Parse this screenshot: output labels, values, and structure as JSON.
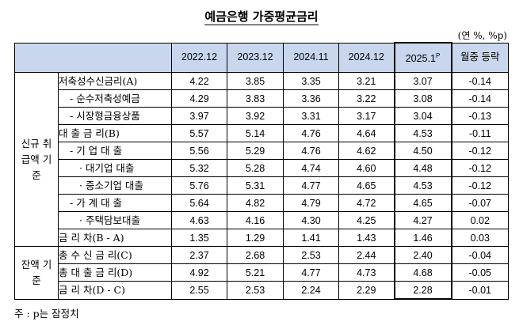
{
  "title": "예금은행 가중평균금리",
  "unit": "(연 %, %p)",
  "columns": [
    "2022.12",
    "2023.12",
    "2024.11",
    "2024.12",
    "2025.1",
    "월중 등락"
  ],
  "prelim_mark": "P",
  "groups": {
    "new": "신규 취급액 기준",
    "balance": "잔액 기준"
  },
  "rows": [
    {
      "label": "저축성수신금리(A)",
      "values": [
        "4.22",
        "3.85",
        "3.35",
        "3.21",
        "3.07",
        "-0.14"
      ]
    },
    {
      "label": "- 순수저축성예금",
      "values": [
        "4.29",
        "3.83",
        "3.36",
        "3.22",
        "3.08",
        "-0.14"
      ]
    },
    {
      "label": "- 시장형금융상품",
      "values": [
        "3.97",
        "3.92",
        "3.31",
        "3.17",
        "3.04",
        "-0.13"
      ]
    },
    {
      "label": "대 출 금 리(B)",
      "values": [
        "5.57",
        "5.14",
        "4.76",
        "4.64",
        "4.53",
        "-0.11"
      ]
    },
    {
      "label": "- 기 업 대 출",
      "values": [
        "5.56",
        "5.29",
        "4.76",
        "4.62",
        "4.50",
        "-0.12"
      ]
    },
    {
      "label": "· 대기업 대출",
      "values": [
        "5.32",
        "5.28",
        "4.74",
        "4.60",
        "4.48",
        "-0.12"
      ]
    },
    {
      "label": "· 중소기업 대출",
      "values": [
        "5.76",
        "5.31",
        "4.77",
        "4.65",
        "4.53",
        "-0.12"
      ]
    },
    {
      "label": "- 가 계 대 출",
      "values": [
        "5.64",
        "4.82",
        "4.79",
        "4.72",
        "4.65",
        "-0.07"
      ]
    },
    {
      "label": "· 주택담보대출",
      "values": [
        "4.63",
        "4.16",
        "4.30",
        "4.25",
        "4.27",
        "0.02"
      ]
    },
    {
      "label": "금 리 차(B - A)",
      "values": [
        "1.35",
        "1.29",
        "1.41",
        "1.43",
        "1.46",
        "0.03"
      ]
    },
    {
      "label": "총 수 신 금 리(C)",
      "values": [
        "2.37",
        "2.68",
        "2.53",
        "2.44",
        "2.40",
        "-0.04"
      ]
    },
    {
      "label": "총 대 출 금 리(D)",
      "values": [
        "4.92",
        "5.21",
        "4.77",
        "4.73",
        "4.68",
        "-0.05"
      ]
    },
    {
      "label": "금 리 차(D - C)",
      "values": [
        "2.55",
        "2.53",
        "2.24",
        "2.29",
        "2.28",
        "-0.01"
      ]
    }
  ],
  "note": "주 : p는 잠정치"
}
